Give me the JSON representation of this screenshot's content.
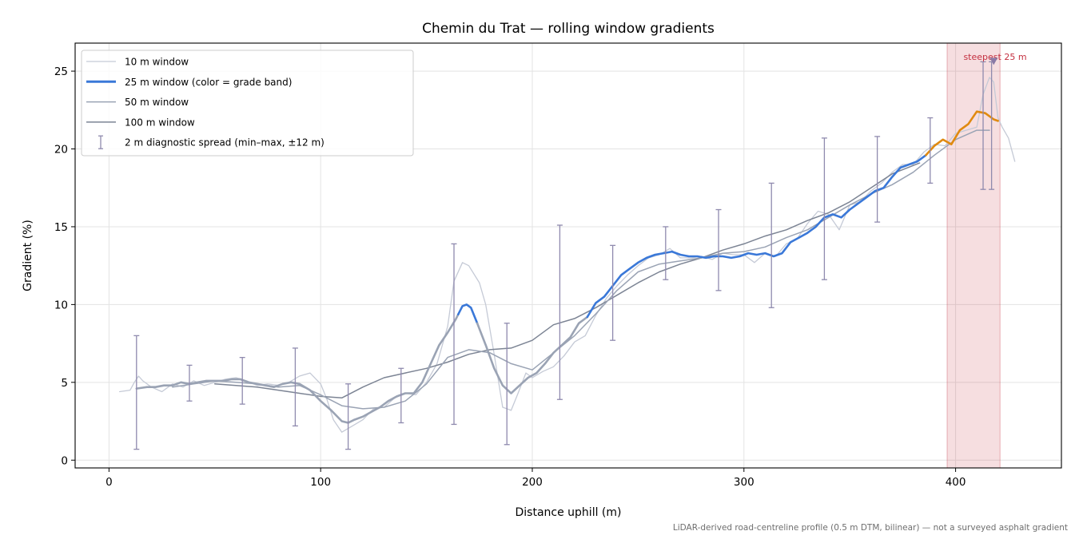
{
  "chart_data": {
    "type": "line",
    "title": "Chemin du Trat — rolling window gradients",
    "xlabel": "Distance uphill (m)",
    "ylabel": "Gradient (%)",
    "xlim": [
      -16,
      450
    ],
    "ylim": [
      -0.5,
      26.8
    ],
    "xticks": [
      0,
      100,
      200,
      300,
      400
    ],
    "yticks": [
      0,
      5,
      10,
      15,
      20,
      25
    ],
    "grid": true,
    "legend_position": "top-left",
    "footnote": "LiDAR-derived road-centreline profile (0.5 m DTM, bilinear) — not a surveyed asphalt gradient",
    "highlight": {
      "label": "steepest 25 m",
      "x_range": [
        396,
        421
      ],
      "marker": [
        418,
        25.6
      ],
      "color": "#c43040"
    },
    "legend": [
      {
        "label": "10 m window",
        "kind": "line",
        "color": "#c5cad6",
        "width": 1.3
      },
      {
        "label": "25 m window (color = grade band)",
        "kind": "line",
        "color": "#3a78d8",
        "width": 3
      },
      {
        "label": "50 m window",
        "kind": "line",
        "color": "#9aa3b4",
        "width": 1.5
      },
      {
        "label": "100 m window",
        "kind": "line",
        "color": "#7c8494",
        "width": 1.5
      },
      {
        "label": "2 m diagnostic spread (min–max, ±12 m)",
        "kind": "errorbar",
        "color": "#8f8aae",
        "width": 1.3
      }
    ],
    "series": [
      {
        "name": "10 m window",
        "color": "#c5cad6",
        "width": 1.3,
        "x": [
          5,
          10,
          12,
          14,
          16,
          20,
          25,
          30,
          35,
          40,
          45,
          50,
          55,
          60,
          65,
          70,
          75,
          80,
          85,
          90,
          95,
          100,
          103,
          106,
          110,
          115,
          120,
          125,
          130,
          135,
          140,
          145,
          150,
          155,
          160,
          163,
          167,
          170,
          175,
          178,
          182,
          186,
          190,
          193,
          197,
          200,
          205,
          210,
          215,
          220,
          225,
          230,
          235,
          240,
          245,
          250,
          255,
          260,
          265,
          270,
          275,
          280,
          285,
          290,
          295,
          300,
          305,
          310,
          315,
          320,
          325,
          330,
          335,
          340,
          345,
          350,
          355,
          360,
          365,
          370,
          375,
          380,
          385,
          390,
          395,
          400,
          405,
          410,
          413,
          416,
          418,
          420,
          422,
          425,
          428
        ],
        "y": [
          4.4,
          4.5,
          5.0,
          5.4,
          5.1,
          4.7,
          4.4,
          4.9,
          4.7,
          5.1,
          4.8,
          5.0,
          5.2,
          5.3,
          5.1,
          4.8,
          4.9,
          4.8,
          5.0,
          5.4,
          5.6,
          4.9,
          3.9,
          2.6,
          1.8,
          2.2,
          2.6,
          3.3,
          3.4,
          4.0,
          4.3,
          4.2,
          5.0,
          6.2,
          8.6,
          11.5,
          12.7,
          12.5,
          11.4,
          10.0,
          6.8,
          3.4,
          3.2,
          4.2,
          5.6,
          5.3,
          5.7,
          6.0,
          6.7,
          7.6,
          8.0,
          9.3,
          10.4,
          11.2,
          11.9,
          12.5,
          13.0,
          13.2,
          13.6,
          13.0,
          13.0,
          13.1,
          12.9,
          13.3,
          13.2,
          13.2,
          12.7,
          13.3,
          13.1,
          13.9,
          14.2,
          15.2,
          16.0,
          15.8,
          14.8,
          16.4,
          16.6,
          17.3,
          17.8,
          18.5,
          19.0,
          19.0,
          19.8,
          20.3,
          20.2,
          21.0,
          21.2,
          21.4,
          23.5,
          24.6,
          24.3,
          22.0,
          21.4,
          20.7,
          19.2
        ]
      },
      {
        "name": "25 m window (color = grade band)",
        "color": "#3a78d8",
        "width": 2.6,
        "x": [
          13,
          18,
          22,
          26,
          30,
          34,
          38,
          42,
          46,
          50,
          54,
          58,
          62,
          66,
          70,
          74,
          78,
          82,
          86,
          90,
          95,
          100,
          105,
          110,
          113,
          116,
          120,
          124,
          128,
          132,
          136,
          140,
          144,
          148,
          152,
          156,
          160,
          164,
          167,
          169,
          171,
          174,
          178,
          182,
          186,
          190,
          194,
          198,
          202,
          206,
          210,
          214,
          218,
          222,
          226,
          230,
          234,
          238,
          242,
          246,
          250,
          254,
          258,
          262,
          266,
          270,
          274,
          278,
          282,
          286,
          290,
          294,
          298,
          302,
          306,
          310,
          314,
          318,
          322,
          326,
          330,
          334,
          338,
          342,
          346,
          350,
          354,
          358,
          362,
          366,
          370,
          374,
          378,
          382,
          386,
          390,
          394,
          398,
          402,
          406,
          410,
          414,
          418,
          420
        ],
        "y": [
          4.6,
          4.7,
          4.7,
          4.8,
          4.8,
          5.0,
          4.9,
          5.0,
          5.1,
          5.1,
          5.1,
          5.2,
          5.2,
          5.0,
          4.9,
          4.8,
          4.7,
          4.9,
          5.0,
          4.9,
          4.5,
          3.8,
          3.2,
          2.5,
          2.4,
          2.6,
          2.8,
          3.1,
          3.4,
          3.8,
          4.1,
          4.3,
          4.3,
          5.0,
          6.2,
          7.4,
          8.2,
          9.1,
          9.9,
          10.0,
          9.8,
          8.8,
          7.4,
          5.9,
          4.8,
          4.3,
          4.8,
          5.3,
          5.6,
          6.2,
          6.9,
          7.4,
          7.9,
          8.8,
          9.2,
          10.1,
          10.5,
          11.2,
          11.9,
          12.3,
          12.7,
          13.0,
          13.2,
          13.3,
          13.4,
          13.2,
          13.1,
          13.1,
          13.0,
          13.1,
          13.1,
          13.0,
          13.1,
          13.3,
          13.2,
          13.3,
          13.1,
          13.3,
          14.0,
          14.3,
          14.6,
          15.0,
          15.6,
          15.8,
          15.6,
          16.1,
          16.5,
          16.9,
          17.3,
          17.5,
          18.2,
          18.8,
          19.0,
          19.2,
          19.6,
          20.2,
          20.6,
          20.3,
          21.2,
          21.6,
          22.4,
          22.3,
          21.9,
          21.8
        ]
      },
      {
        "name": "50 m window",
        "color": "#9aa3b4",
        "width": 1.5,
        "x": [
          30,
          40,
          50,
          60,
          70,
          80,
          90,
          100,
          110,
          120,
          130,
          140,
          150,
          160,
          170,
          180,
          190,
          200,
          210,
          220,
          230,
          240,
          250,
          260,
          270,
          280,
          290,
          300,
          310,
          320,
          330,
          340,
          350,
          360,
          370,
          380,
          390,
          400,
          410,
          416
        ],
        "y": [
          4.7,
          4.9,
          5.1,
          5.0,
          4.9,
          4.7,
          4.8,
          4.2,
          3.5,
          3.3,
          3.4,
          3.8,
          4.9,
          6.6,
          7.1,
          6.9,
          6.2,
          5.8,
          6.9,
          8.0,
          9.4,
          10.9,
          12.1,
          12.6,
          12.8,
          13.0,
          13.3,
          13.4,
          13.7,
          14.3,
          14.8,
          15.6,
          16.4,
          17.1,
          17.7,
          18.5,
          19.6,
          20.6,
          21.2,
          21.2
        ]
      },
      {
        "name": "100 m window",
        "color": "#7c8494",
        "width": 1.5,
        "x": [
          50,
          60,
          70,
          80,
          90,
          100,
          110,
          120,
          130,
          140,
          150,
          160,
          170,
          180,
          190,
          200,
          210,
          220,
          230,
          240,
          250,
          260,
          270,
          280,
          290,
          300,
          310,
          320,
          330,
          340,
          350,
          360,
          370,
          383
        ],
        "y": [
          4.9,
          4.8,
          4.7,
          4.5,
          4.3,
          4.1,
          4.0,
          4.7,
          5.3,
          5.6,
          5.9,
          6.3,
          6.8,
          7.1,
          7.2,
          7.7,
          8.7,
          9.1,
          9.8,
          10.6,
          11.4,
          12.1,
          12.6,
          13.0,
          13.5,
          13.9,
          14.4,
          14.8,
          15.4,
          15.9,
          16.6,
          17.5,
          18.4,
          19.1
        ]
      }
    ],
    "grade_bands": [
      {
        "x_range": [
          13,
          165
        ],
        "color": "#9aa3b4"
      },
      {
        "x_range": [
          165,
          174
        ],
        "color": "#3a78d8"
      },
      {
        "x_range": [
          174,
          226
        ],
        "color": "#9aa3b4"
      },
      {
        "x_range": [
          226,
          386
        ],
        "color": "#3a78d8"
      },
      {
        "x_range": [
          386,
          420
        ],
        "color": "#e08a10"
      }
    ],
    "error_bars": [
      {
        "x": 13,
        "low": 0.7,
        "high": 8.0
      },
      {
        "x": 38,
        "low": 3.8,
        "high": 6.1
      },
      {
        "x": 63,
        "low": 3.6,
        "high": 6.6
      },
      {
        "x": 88,
        "low": 2.2,
        "high": 7.2
      },
      {
        "x": 113,
        "low": 0.7,
        "high": 4.9
      },
      {
        "x": 138,
        "low": 2.4,
        "high": 5.9
      },
      {
        "x": 163,
        "low": 2.3,
        "high": 13.9
      },
      {
        "x": 188,
        "low": 1.0,
        "high": 8.8
      },
      {
        "x": 213,
        "low": 3.9,
        "high": 15.1
      },
      {
        "x": 238,
        "low": 7.7,
        "high": 13.8
      },
      {
        "x": 263,
        "low": 11.6,
        "high": 15.0
      },
      {
        "x": 288,
        "low": 10.9,
        "high": 16.1
      },
      {
        "x": 313,
        "low": 9.8,
        "high": 17.8
      },
      {
        "x": 338,
        "low": 11.6,
        "high": 20.7
      },
      {
        "x": 363,
        "low": 15.3,
        "high": 20.8
      },
      {
        "x": 388,
        "low": 17.8,
        "high": 22.0
      },
      {
        "x": 413,
        "low": 17.4,
        "high": 25.6
      },
      {
        "x": 417,
        "low": 17.4,
        "high": 25.6
      }
    ]
  }
}
